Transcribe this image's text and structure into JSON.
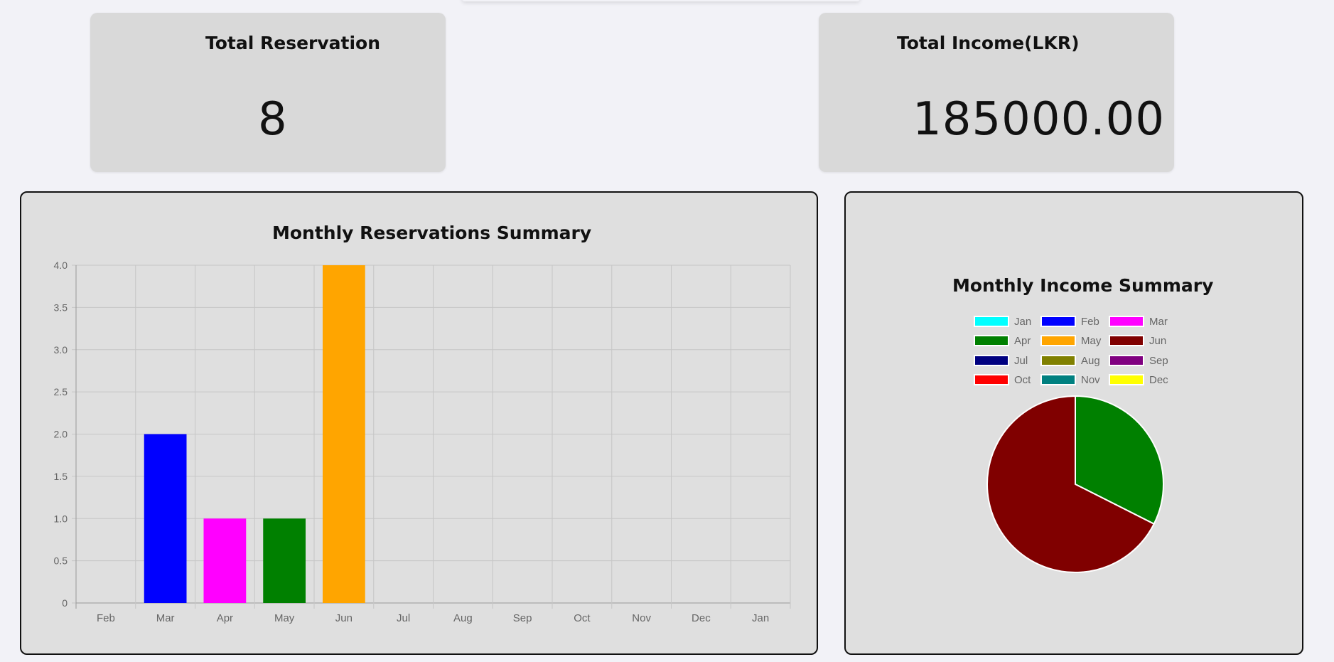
{
  "cards": {
    "reservations": {
      "title": "Total Reservation",
      "value": "8"
    },
    "income": {
      "title": "Total Income(LKR)",
      "value": "185000.00"
    }
  },
  "colors": {
    "Jan": "#00ffff",
    "Feb": "#0000ff",
    "Mar": "#ff00ff",
    "Apr": "#008000",
    "May": "#ffa500",
    "Jun": "#800000",
    "Jul": "#000080",
    "Aug": "#808000",
    "Sep": "#800080",
    "Oct": "#ff0000",
    "Nov": "#008080",
    "Dec": "#ffff00"
  },
  "chart_data": [
    {
      "type": "bar",
      "title": "Monthly Reservations Summary",
      "categories": [
        "Feb",
        "Mar",
        "Apr",
        "May",
        "Jun",
        "Jul",
        "Aug",
        "Sep",
        "Oct",
        "Nov",
        "Dec",
        "Jan"
      ],
      "values": [
        0,
        2,
        1,
        1,
        4,
        0,
        0,
        0,
        0,
        0,
        0,
        0
      ],
      "bar_colors": [
        "#0000ff",
        "#0000ff",
        "#ff00ff",
        "#008000",
        "#ffa500",
        "#800000",
        "#000080",
        "#808000",
        "#800080",
        "#ff0000",
        "#008080",
        "#ffff00"
      ],
      "ylim": [
        0,
        4
      ],
      "yticks": [
        "0",
        "0.5",
        "1.0",
        "1.5",
        "2.0",
        "2.5",
        "3.0",
        "3.5",
        "4.0"
      ],
      "grid": true,
      "xlabel": "",
      "ylabel": ""
    },
    {
      "type": "pie",
      "title": "Monthly Income Summary",
      "legend_position": "top",
      "labels": [
        "Jan",
        "Feb",
        "Mar",
        "Apr",
        "May",
        "Jun",
        "Jul",
        "Aug",
        "Sep",
        "Oct",
        "Nov",
        "Dec"
      ],
      "values": [
        0,
        0,
        0,
        60000,
        0,
        125000,
        0,
        0,
        0,
        0,
        0,
        0
      ],
      "colors": [
        "#00ffff",
        "#0000ff",
        "#ff00ff",
        "#008000",
        "#ffa500",
        "#800000",
        "#000080",
        "#808000",
        "#800080",
        "#ff0000",
        "#008080",
        "#ffff00"
      ]
    }
  ]
}
